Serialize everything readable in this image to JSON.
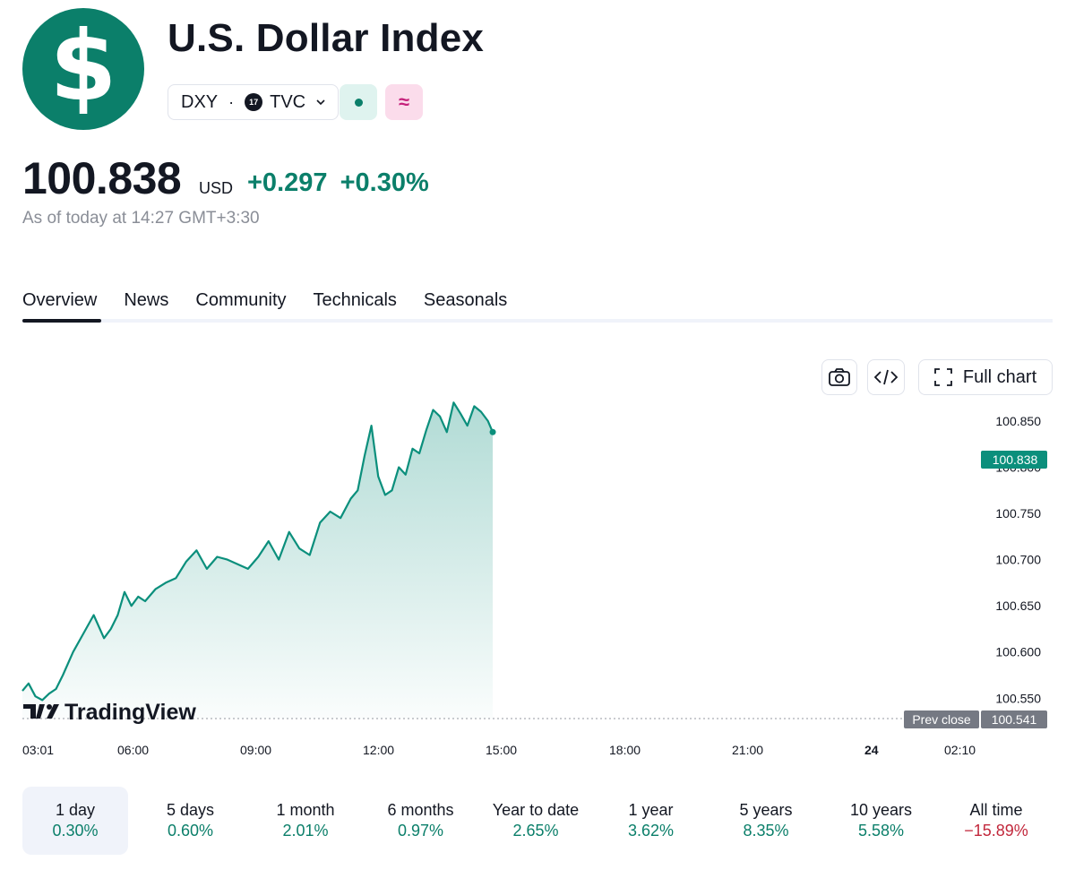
{
  "header": {
    "logo_glyph": "$",
    "logo_color": "#0b7f6a",
    "title": "U.S. Dollar Index",
    "symbol": "DXY",
    "separator": "·",
    "exchange_logo_text": "17",
    "exchange": "TVC",
    "market_status_color": "#0b7f6a",
    "delay_glyph": "≈"
  },
  "quote": {
    "price": "100.838",
    "currency": "USD",
    "change": "+0.297",
    "change_percent": "+0.30%",
    "as_of": "As of today at 14:27 GMT+3:30",
    "positive_color": "#0b7f6a",
    "negative_color": "#c2283c"
  },
  "tabs": [
    "Overview",
    "News",
    "Community",
    "Technicals",
    "Seasonals"
  ],
  "active_tab": "Overview",
  "toolbar": {
    "screenshot_icon": "camera-icon",
    "embed_icon": "code-icon",
    "full_chart_icon": "expand-icon",
    "full_chart_label": "Full chart"
  },
  "chart_data": {
    "type": "area",
    "x_ticks": [
      "03:01",
      "06:00",
      "09:00",
      "12:00",
      "15:00",
      "18:00",
      "21:00",
      "24",
      "02:10"
    ],
    "y_ticks": [
      "100.850",
      "100.800",
      "100.750",
      "100.700",
      "100.650",
      "100.600",
      "100.550"
    ],
    "ylim": [
      100.528,
      100.879
    ],
    "x": [
      "03:01",
      "03:10",
      "03:20",
      "03:30",
      "03:40",
      "03:50",
      "04:00",
      "04:15",
      "04:30",
      "04:45",
      "05:00",
      "05:10",
      "05:20",
      "05:30",
      "05:40",
      "05:50",
      "06:00",
      "06:15",
      "06:30",
      "06:45",
      "07:00",
      "07:15",
      "07:30",
      "07:45",
      "08:00",
      "08:15",
      "08:30",
      "08:45",
      "09:00",
      "09:15",
      "09:30",
      "09:45",
      "10:00",
      "10:15",
      "10:30",
      "10:45",
      "11:00",
      "11:10",
      "11:20",
      "11:30",
      "11:40",
      "11:50",
      "12:00",
      "12:10",
      "12:20",
      "12:30",
      "12:40",
      "12:50",
      "13:00",
      "13:10",
      "13:20",
      "13:30",
      "13:40",
      "13:50",
      "14:00",
      "14:10",
      "14:20",
      "14:27"
    ],
    "values": [
      100.558,
      100.566,
      100.552,
      100.548,
      100.555,
      100.56,
      100.575,
      100.6,
      100.62,
      100.64,
      100.615,
      100.625,
      100.64,
      100.665,
      100.65,
      100.66,
      100.655,
      100.668,
      100.675,
      100.68,
      100.698,
      100.71,
      100.69,
      100.703,
      100.7,
      100.695,
      100.69,
      100.703,
      100.72,
      100.7,
      100.73,
      100.712,
      100.705,
      100.74,
      100.752,
      100.745,
      100.766,
      100.775,
      100.812,
      100.845,
      100.79,
      100.77,
      100.775,
      100.8,
      100.792,
      100.82,
      100.815,
      100.84,
      100.862,
      100.855,
      100.838,
      100.87,
      100.858,
      100.845,
      100.866,
      100.86,
      100.85,
      100.838
    ],
    "last_value": "100.838",
    "prev_close_label": "Prev close",
    "prev_close": "100.541",
    "line_color": "#0b8f7c",
    "watermark": "TradingView",
    "grid": false
  },
  "periods": [
    {
      "label": "1 day",
      "value": "0.30%",
      "negative": false
    },
    {
      "label": "5 days",
      "value": "0.60%",
      "negative": false
    },
    {
      "label": "1 month",
      "value": "2.01%",
      "negative": false
    },
    {
      "label": "6 months",
      "value": "0.97%",
      "negative": false
    },
    {
      "label": "Year to date",
      "value": "2.65%",
      "negative": false
    },
    {
      "label": "1 year",
      "value": "3.62%",
      "negative": false
    },
    {
      "label": "5 years",
      "value": "8.35%",
      "negative": false
    },
    {
      "label": "10 years",
      "value": "5.58%",
      "negative": false
    },
    {
      "label": "All time",
      "value": "−15.89%",
      "negative": true
    }
  ],
  "active_period": "1 day"
}
